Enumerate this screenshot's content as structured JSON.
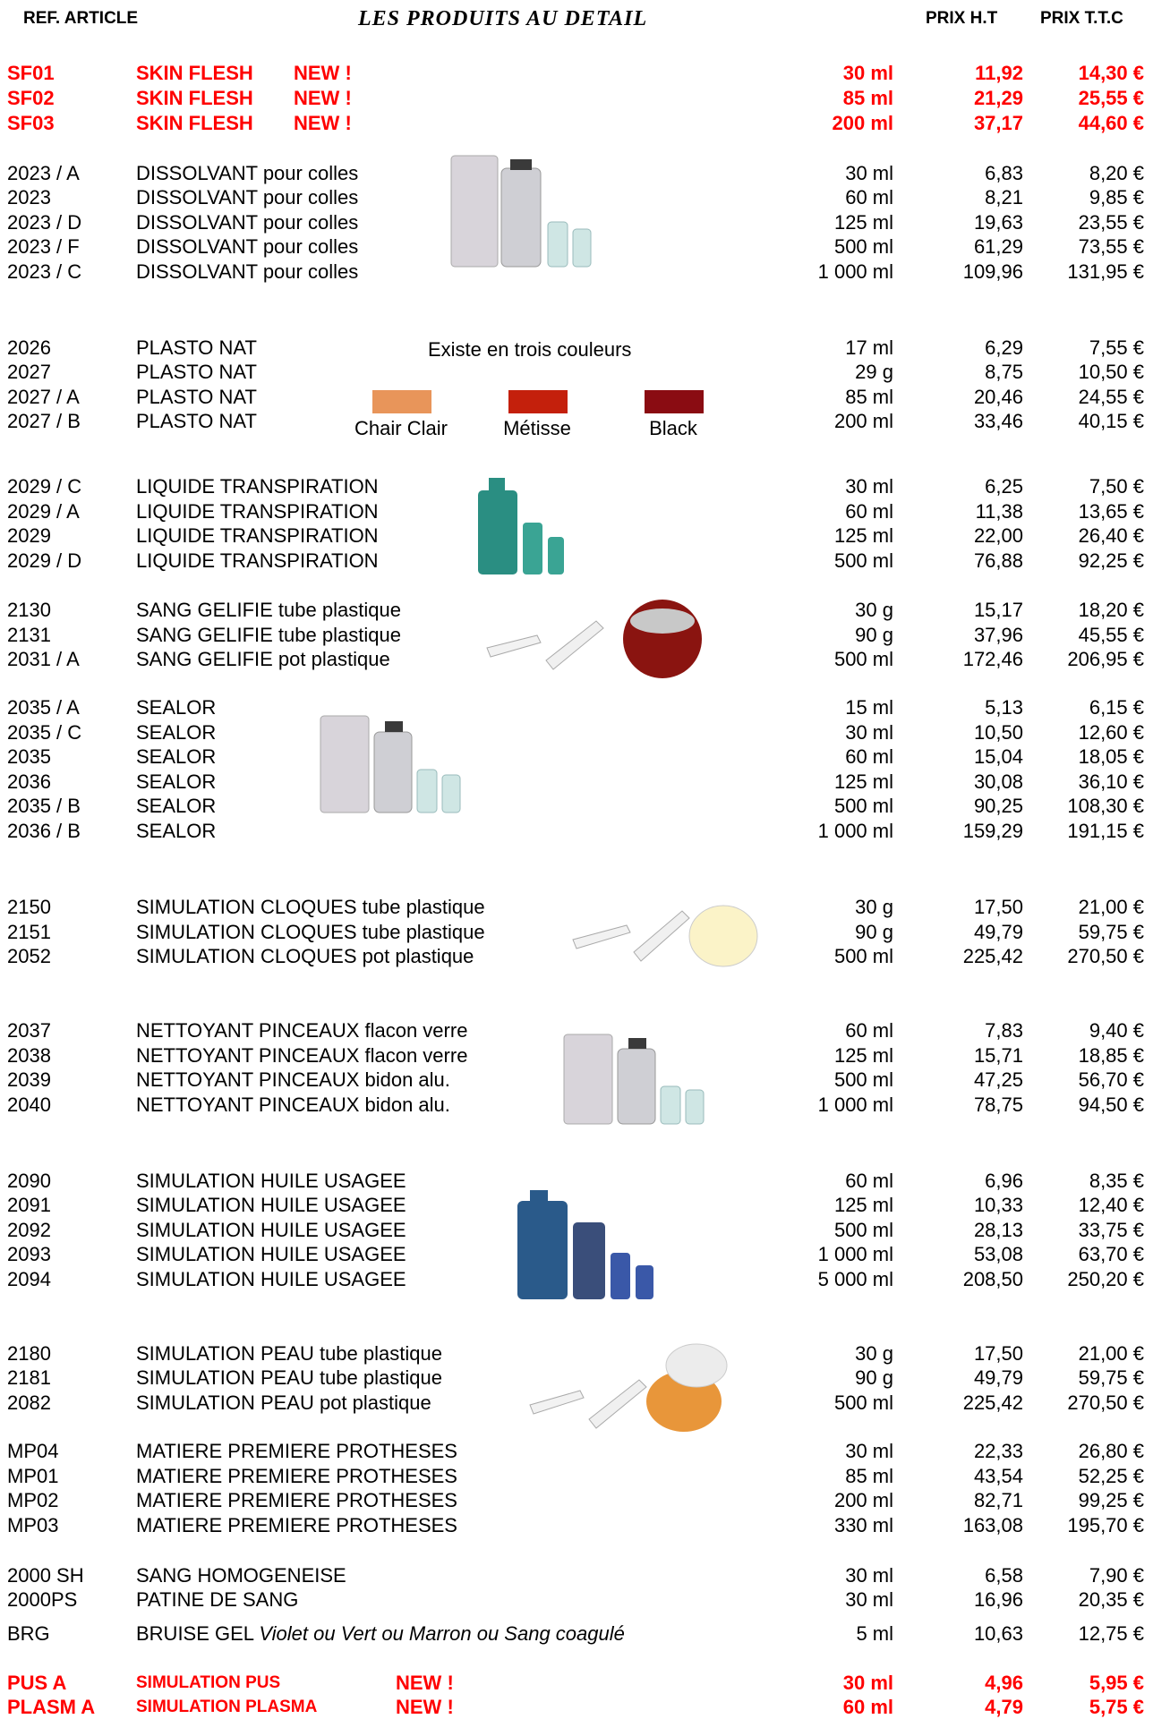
{
  "header": {
    "ref_label": "REF. ARTICLE",
    "title": "LES PRODUITS AU DETAIL",
    "ht_label": "PRIX  H.T",
    "ttc_label": "PRIX T.T.C"
  },
  "rows": [
    {
      "ref": "SF01",
      "name": "SKIN FLESH",
      "new": "NEW !",
      "qty": "30 ml",
      "ht": "11,92",
      "ttc": "14,30 €"
    },
    {
      "ref": "SF02",
      "name": "SKIN FLESH",
      "new": "NEW !",
      "qty": "85 ml",
      "ht": "21,29",
      "ttc": "25,55 €"
    },
    {
      "ref": "SF03",
      "name": "SKIN FLESH",
      "new": "NEW !",
      "qty": "200 ml",
      "ht": "37,17",
      "ttc": "44,60 €"
    },
    {
      "ref": "2023 / A",
      "name": "DISSOLVANT pour colles",
      "qty": "30 ml",
      "ht": "6,83",
      "ttc": "8,20 €"
    },
    {
      "ref": "2023",
      "name": "DISSOLVANT pour colles",
      "qty": "60 ml",
      "ht": "8,21",
      "ttc": "9,85 €"
    },
    {
      "ref": "2023 / D",
      "name": "DISSOLVANT pour colles",
      "qty": "125 ml",
      "ht": "19,63",
      "ttc": "23,55 €"
    },
    {
      "ref": "2023 / F",
      "name": "DISSOLVANT pour colles",
      "qty": "500 ml",
      "ht": "61,29",
      "ttc": "73,55 €"
    },
    {
      "ref": "2023 / C",
      "name": "DISSOLVANT pour colles",
      "qty": "1 000 ml",
      "ht": "109,96",
      "ttc": "131,95 €"
    },
    {
      "ref": "2026",
      "name": "PLASTO NAT",
      "qty": "17 ml",
      "ht": "6,29",
      "ttc": "7,55 €"
    },
    {
      "ref": "2027",
      "name": "PLASTO NAT",
      "qty": "29 g",
      "ht": "8,75",
      "ttc": "10,50 €"
    },
    {
      "ref": "2027 / A",
      "name": "PLASTO NAT",
      "qty": "85 ml",
      "ht": "20,46",
      "ttc": "24,55 €"
    },
    {
      "ref": "2027 / B",
      "name": "PLASTO NAT",
      "qty": "200 ml",
      "ht": "33,46",
      "ttc": "40,15 €"
    },
    {
      "ref": "2029 / C",
      "name": "LIQUIDE TRANSPIRATION",
      "qty": "30 ml",
      "ht": "6,25",
      "ttc": "7,50 €"
    },
    {
      "ref": "2029 / A",
      "name": "LIQUIDE TRANSPIRATION",
      "qty": "60 ml",
      "ht": "11,38",
      "ttc": "13,65 €"
    },
    {
      "ref": "2029",
      "name": "LIQUIDE TRANSPIRATION",
      "qty": "125 ml",
      "ht": "22,00",
      "ttc": "26,40 €"
    },
    {
      "ref": "2029 / D",
      "name": "LIQUIDE TRANSPIRATION",
      "qty": "500 ml",
      "ht": "76,88",
      "ttc": "92,25 €"
    },
    {
      "ref": "2130",
      "name": "SANG GELIFIE tube plastique",
      "qty": "30 g",
      "ht": "15,17",
      "ttc": "18,20 €"
    },
    {
      "ref": "2131",
      "name": "SANG GELIFIE tube plastique",
      "qty": "90 g",
      "ht": "37,96",
      "ttc": "45,55 €"
    },
    {
      "ref": "2031 / A",
      "name": "SANG GELIFIE pot plastique",
      "qty": "500 ml",
      "ht": "172,46",
      "ttc": "206,95 €"
    },
    {
      "ref": "2035 / A",
      "name": "SEALOR",
      "qty": "15 ml",
      "ht": "5,13",
      "ttc": "6,15 €"
    },
    {
      "ref": "2035 / C",
      "name": "SEALOR",
      "qty": "30 ml",
      "ht": "10,50",
      "ttc": "12,60 €"
    },
    {
      "ref": "2035",
      "name": "SEALOR",
      "qty": "60 ml",
      "ht": "15,04",
      "ttc": "18,05 €"
    },
    {
      "ref": "2036",
      "name": "SEALOR",
      "qty": "125 ml",
      "ht": "30,08",
      "ttc": "36,10 €"
    },
    {
      "ref": "2035 / B",
      "name": "SEALOR",
      "qty": "500 ml",
      "ht": "90,25",
      "ttc": "108,30 €"
    },
    {
      "ref": "2036 / B",
      "name": "SEALOR",
      "qty": "1 000 ml",
      "ht": "159,29",
      "ttc": "191,15 €"
    },
    {
      "ref": "2150",
      "name": "SIMULATION CLOQUES tube plastique",
      "qty": "30 g",
      "ht": "17,50",
      "ttc": "21,00 €"
    },
    {
      "ref": "2151",
      "name": "SIMULATION CLOQUES tube plastique",
      "qty": "90 g",
      "ht": "49,79",
      "ttc": "59,75 €"
    },
    {
      "ref": "2052",
      "name": "SIMULATION CLOQUES pot plastique",
      "qty": "500 ml",
      "ht": "225,42",
      "ttc": "270,50 €"
    },
    {
      "ref": "2037",
      "name": "NETTOYANT PINCEAUX flacon verre",
      "qty": "60 ml",
      "ht": "7,83",
      "ttc": "9,40 €"
    },
    {
      "ref": "2038",
      "name": "NETTOYANT PINCEAUX flacon verre",
      "qty": "125 ml",
      "ht": "15,71",
      "ttc": "18,85 €"
    },
    {
      "ref": "2039",
      "name": "NETTOYANT PINCEAUX bidon alu.",
      "qty": "500 ml",
      "ht": "47,25",
      "ttc": "56,70 €"
    },
    {
      "ref": "2040",
      "name": "NETTOYANT PINCEAUX bidon alu.",
      "qty": "1 000 ml",
      "ht": "78,75",
      "ttc": "94,50 €"
    },
    {
      "ref": "2090",
      "name": "SIMULATION HUILE USAGEE",
      "qty": "60 ml",
      "ht": "6,96",
      "ttc": "8,35 €"
    },
    {
      "ref": "2091",
      "name": "SIMULATION HUILE USAGEE",
      "qty": "125 ml",
      "ht": "10,33",
      "ttc": "12,40 €"
    },
    {
      "ref": "2092",
      "name": "SIMULATION HUILE USAGEE",
      "qty": "500 ml",
      "ht": "28,13",
      "ttc": "33,75 €"
    },
    {
      "ref": "2093",
      "name": "SIMULATION HUILE USAGEE",
      "qty": "1 000 ml",
      "ht": "53,08",
      "ttc": "63,70 €"
    },
    {
      "ref": "2094",
      "name": "SIMULATION HUILE USAGEE",
      "qty": "5 000 ml",
      "ht": "208,50",
      "ttc": "250,20 €"
    },
    {
      "ref": "2180",
      "name": "SIMULATION PEAU tube plastique",
      "qty": "30 g",
      "ht": "17,50",
      "ttc": "21,00 €"
    },
    {
      "ref": "2181",
      "name": "SIMULATION PEAU tube plastique",
      "qty": "90 g",
      "ht": "49,79",
      "ttc": "59,75 €"
    },
    {
      "ref": "2082",
      "name": "SIMULATION PEAU pot plastique",
      "qty": "500 ml",
      "ht": "225,42",
      "ttc": "270,50 €"
    },
    {
      "ref": "MP04",
      "name": "MATIERE PREMIERE PROTHESES",
      "qty": "30 ml",
      "ht": "22,33",
      "ttc": "26,80 €"
    },
    {
      "ref": "MP01",
      "name": "MATIERE PREMIERE PROTHESES",
      "qty": "85 ml",
      "ht": "43,54",
      "ttc": "52,25 €"
    },
    {
      "ref": "MP02",
      "name": "MATIERE PREMIERE PROTHESES",
      "qty": "200 ml",
      "ht": "82,71",
      "ttc": "99,25 €"
    },
    {
      "ref": "MP03",
      "name": "MATIERE PREMIERE PROTHESES",
      "qty": "330 ml",
      "ht": "163,08",
      "ttc": "195,70 €"
    },
    {
      "ref": "2000 SH",
      "name": "SANG HOMOGENEISE",
      "qty": "30 ml",
      "ht": "6,58",
      "ttc": "7,90 €"
    },
    {
      "ref": "2000PS",
      "name": "PATINE DE SANG",
      "qty": "30 ml",
      "ht": "16,96",
      "ttc": "20,35 €"
    },
    {
      "ref": "BRG",
      "name": "BRUISE GEL",
      "name_italic": "Violet ou Vert ou Marron ou Sang coagulé",
      "qty": "5 ml",
      "ht": "10,63",
      "ttc": "12,75 €"
    },
    {
      "ref": "PUS A",
      "name": "SIMULATION PUS",
      "new": "NEW !",
      "qty": "30 ml",
      "ht": "4,96",
      "ttc": "5,95 €"
    },
    {
      "ref": "PLASM A",
      "name": "SIMULATION PLASMA",
      "new": "NEW !",
      "qty": "60 ml",
      "ht": "4,79",
      "ttc": "5,75 €"
    }
  ],
  "plasto_note": "Existe en trois couleurs",
  "swatches": [
    {
      "label": "Chair Clair",
      "color": "#e8955a"
    },
    {
      "label": "Métisse",
      "color": "#c4200c"
    },
    {
      "label": "Black",
      "color": "#8a0c12"
    }
  ],
  "product_images": [
    {
      "name": "dissolvant-bottles-image"
    },
    {
      "name": "liquide-transpiration-bottles-image"
    },
    {
      "name": "sang-gelifie-tubes-image"
    },
    {
      "name": "sealor-bottles-image"
    },
    {
      "name": "cloques-tubes-image"
    },
    {
      "name": "nettoyant-pinceaux-bottles-image"
    },
    {
      "name": "huile-usagee-bottles-image"
    },
    {
      "name": "peau-tubes-image"
    }
  ]
}
